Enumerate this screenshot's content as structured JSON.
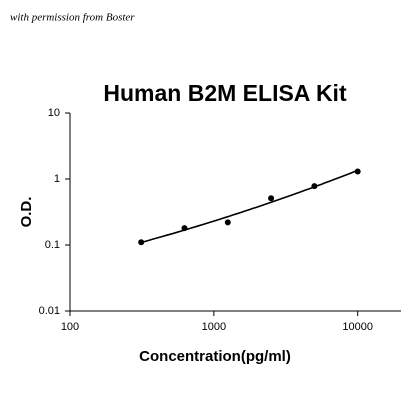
{
  "watermark": "with permission from Boster",
  "chart_data": {
    "type": "scatter",
    "title": "Human B2M ELISA Kit",
    "x_label": "Concentration(pg/ml)",
    "y_label": "O.D.",
    "x": [
      312.5,
      625,
      1250,
      2500,
      5000,
      10000
    ],
    "values": [
      0.11,
      0.18,
      0.22,
      0.51,
      0.78,
      1.3
    ],
    "color": "#000000",
    "xlim": [
      100,
      20000
    ],
    "ylim": [
      0.01,
      10
    ],
    "xticks": [
      100,
      1000,
      10000
    ],
    "yticks": [
      0.01,
      0.1,
      1,
      10
    ],
    "xscale": "log",
    "yscale": "log",
    "fit_curve": true
  }
}
